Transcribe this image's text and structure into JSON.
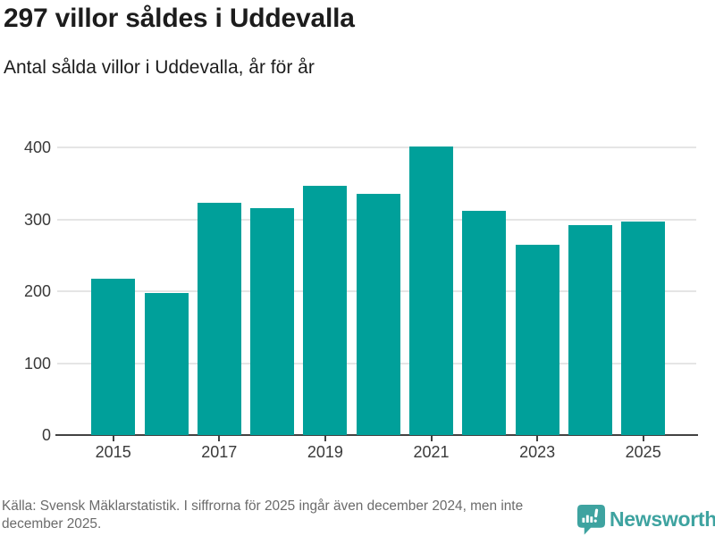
{
  "title": "297 villor såldes i Uddevalla",
  "subtitle": "Antal sålda villor i Uddevalla, år för år",
  "footer": {
    "source": "Källa: Svensk Mäklarstatistik. I siffrorna för 2025 ingår även december 2024, men inte december 2025."
  },
  "branding": {
    "logo_text": "Newsworthy",
    "logo_icon": "bar-chart-speech-bubble-icon",
    "logo_color": "#3ea3a0"
  },
  "colors": {
    "bar": "#00a09a",
    "grid": "#e5e5e5",
    "axis": "#424242",
    "title_text": "#1c1c1c",
    "tick_text": "#3a3a3a",
    "muted_text": "#6b6b6b"
  },
  "chart_data": {
    "type": "bar",
    "title": "297 villor såldes i Uddevalla",
    "subtitle": "Antal sålda villor i Uddevalla, år för år",
    "categories": [
      2015,
      2016,
      2017,
      2018,
      2019,
      2020,
      2021,
      2022,
      2023,
      2024,
      2025
    ],
    "values": [
      217,
      197,
      323,
      316,
      347,
      335,
      401,
      312,
      264,
      292,
      297
    ],
    "xlabel": "",
    "ylabel": "",
    "ylim": [
      0,
      430
    ],
    "yticks": [
      0,
      100,
      200,
      300,
      400
    ],
    "xticks_shown": [
      2015,
      2017,
      2019,
      2021,
      2023,
      2025
    ],
    "grid": "horizontal",
    "legend": "none",
    "bar_color": "#00a09a",
    "source": "Källa: Svensk Mäklarstatistik. I siffrorna för 2025 ingår även december 2024, men inte december 2025."
  }
}
